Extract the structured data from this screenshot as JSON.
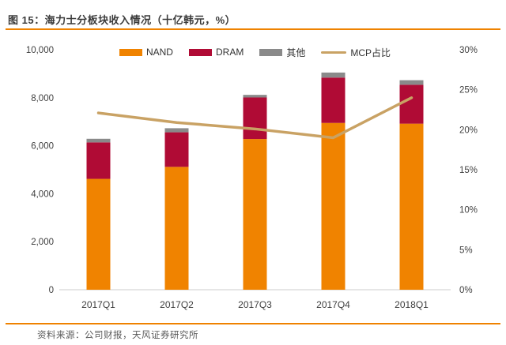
{
  "header": {
    "title": "图 15：海力士分板块收入情况（十亿韩元，%）"
  },
  "footer": {
    "source": "资料来源：公司财报，天风证券研究所"
  },
  "colors": {
    "accent_orange": "#EF8200",
    "nand": "#F08300",
    "dram": "#B00B35",
    "other": "#8A8A8A",
    "mcp_line": "#C9A264",
    "axis_line": "#D6D6D6",
    "tick_text": "#404040",
    "footer_text": "#595959"
  },
  "chart_data": {
    "type": "bar",
    "subtype": "stacked-bars-with-line-combo",
    "title": "海力士分板块收入情况（十亿韩元，%）",
    "categories": [
      "2017Q1",
      "2017Q2",
      "2017Q3",
      "2017Q4",
      "2018Q1"
    ],
    "series": [
      {
        "name": "NAND",
        "color_key": "nand",
        "values": [
          4620,
          5120,
          6280,
          6950,
          6920
        ]
      },
      {
        "name": "DRAM",
        "color_key": "dram",
        "values": [
          1520,
          1440,
          1730,
          1890,
          1620
        ]
      },
      {
        "name": "其他",
        "color_key": "other",
        "values": [
          150,
          170,
          110,
          210,
          190
        ]
      }
    ],
    "line_series": {
      "name": "MCP占比",
      "color_key": "mcp_line",
      "values_pct": [
        22.1,
        20.9,
        20.1,
        19.0,
        24.0
      ]
    },
    "left_axis": {
      "min": 0,
      "max": 10000,
      "step": 2000,
      "tick_labels": [
        "0",
        "2,000",
        "4,000",
        "6,000",
        "8,000",
        "10,000"
      ]
    },
    "right_axis": {
      "min": 0,
      "max": 30,
      "step": 5,
      "tick_labels": [
        "0%",
        "5%",
        "10%",
        "15%",
        "20%",
        "25%",
        "30%"
      ]
    },
    "legend_entries": [
      "NAND",
      "DRAM",
      "其他",
      "MCP占比"
    ],
    "legend_position": "top",
    "gridlines": false
  }
}
